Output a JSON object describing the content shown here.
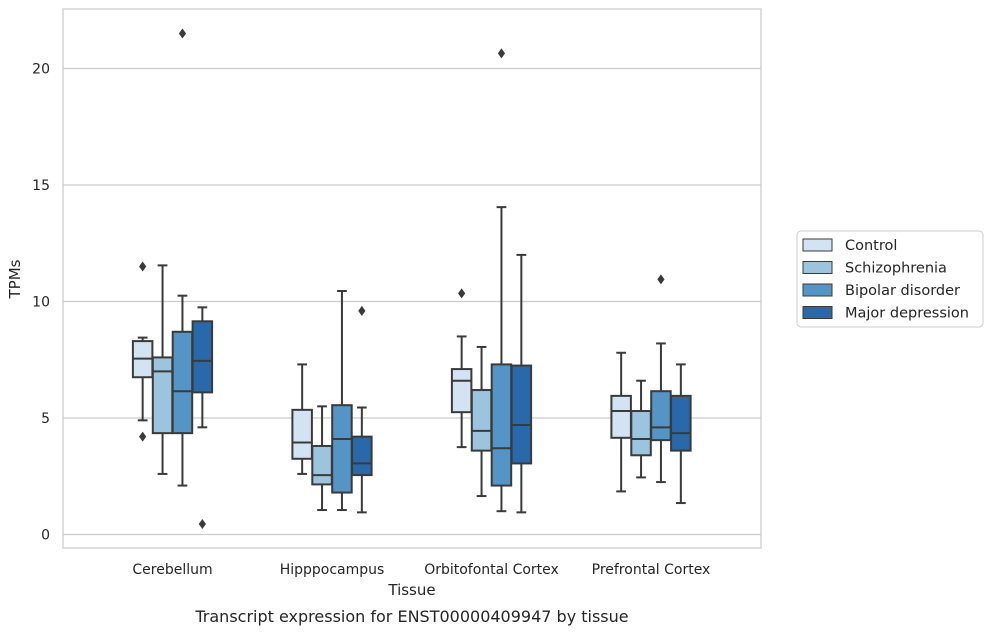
{
  "chart_data": {
    "type": "box",
    "title": "",
    "caption": "Transcript expression for ENST00000409947 by tissue",
    "xlabel": "Tissue",
    "ylabel": "TPMs",
    "ylim": [
      -0.5,
      22.6
    ],
    "yticks": [
      0,
      5,
      10,
      15,
      20
    ],
    "grid": "horizontal",
    "legend_position": "right",
    "categories": [
      "Cerebellum",
      "Hipppocampus",
      "Orbitofontal Cortex",
      "Prefrontal Cortex"
    ],
    "series": [
      {
        "name": "Control",
        "color": "#d3e3f1",
        "boxes": [
          {
            "whislo": 4.9,
            "q1": 6.75,
            "med": 7.55,
            "q3": 8.3,
            "whishi": 8.45,
            "fliers": [
              11.5,
              4.2
            ]
          },
          {
            "whislo": 2.6,
            "q1": 3.25,
            "med": 3.95,
            "q3": 5.35,
            "whishi": 7.3,
            "fliers": []
          },
          {
            "whislo": 3.75,
            "q1": 5.25,
            "med": 6.6,
            "q3": 7.1,
            "whishi": 8.5,
            "fliers": [
              10.35
            ]
          },
          {
            "whislo": 1.85,
            "q1": 4.15,
            "med": 5.3,
            "q3": 5.95,
            "whishi": 7.8,
            "fliers": []
          }
        ]
      },
      {
        "name": "Schizophrenia",
        "color": "#9dc4dd",
        "boxes": [
          {
            "whislo": 2.6,
            "q1": 4.35,
            "med": 7.0,
            "q3": 7.6,
            "whishi": 11.55,
            "fliers": []
          },
          {
            "whislo": 1.05,
            "q1": 2.15,
            "med": 2.55,
            "q3": 3.8,
            "whishi": 5.5,
            "fliers": []
          },
          {
            "whislo": 1.65,
            "q1": 3.6,
            "med": 4.45,
            "q3": 6.2,
            "whishi": 8.05,
            "fliers": []
          },
          {
            "whislo": 2.45,
            "q1": 3.4,
            "med": 4.1,
            "q3": 5.3,
            "whishi": 6.6,
            "fliers": []
          }
        ]
      },
      {
        "name": "Bipolar disorder",
        "color": "#5495c5",
        "boxes": [
          {
            "whislo": 2.1,
            "q1": 4.35,
            "med": 6.15,
            "q3": 8.7,
            "whishi": 10.25,
            "fliers": [
              21.5
            ]
          },
          {
            "whislo": 1.05,
            "q1": 1.8,
            "med": 4.1,
            "q3": 5.55,
            "whishi": 10.45,
            "fliers": []
          },
          {
            "whislo": 1.0,
            "q1": 2.1,
            "med": 3.7,
            "q3": 7.3,
            "whishi": 14.05,
            "fliers": [
              20.65
            ]
          },
          {
            "whislo": 2.25,
            "q1": 4.05,
            "med": 4.6,
            "q3": 6.15,
            "whishi": 8.2,
            "fliers": [
              10.95
            ]
          }
        ]
      },
      {
        "name": "Major depression",
        "color": "#2a69a9",
        "boxes": [
          {
            "whislo": 4.6,
            "q1": 6.1,
            "med": 7.45,
            "q3": 9.15,
            "whishi": 9.75,
            "fliers": [
              0.45
            ]
          },
          {
            "whislo": 0.95,
            "q1": 2.55,
            "med": 3.05,
            "q3": 4.2,
            "whishi": 5.45,
            "fliers": [
              9.6
            ]
          },
          {
            "whislo": 0.95,
            "q1": 3.05,
            "med": 4.7,
            "q3": 7.25,
            "whishi": 12.0,
            "fliers": []
          },
          {
            "whislo": 1.35,
            "q1": 3.6,
            "med": 4.35,
            "q3": 5.95,
            "whishi": 7.3,
            "fliers": []
          }
        ]
      }
    ]
  }
}
